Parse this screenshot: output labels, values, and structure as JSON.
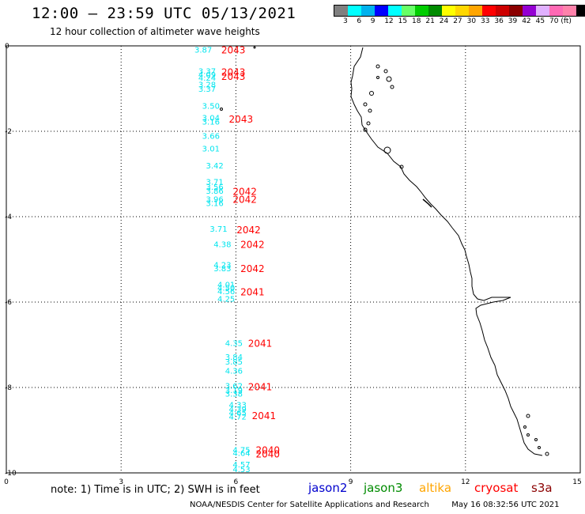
{
  "header": {
    "title": "12:00 – 23:59 UTC 05/13/2021",
    "subtitle": "12 hour collection of altimeter wave heights"
  },
  "legend": {
    "colors": [
      "#808080",
      "#00ffff",
      "#00b2ee",
      "#0000ff",
      "#00ffff",
      "#66ff66",
      "#00cd00",
      "#008b00",
      "#ffff00",
      "#ffd700",
      "#ffa500",
      "#ff0000",
      "#cd0000",
      "#8b0000",
      "#9400d3",
      "#e0b0ff",
      "#ff69b4",
      "#ff82ab",
      "#000000"
    ],
    "labels": [
      "3",
      "6",
      "9",
      "12",
      "15",
      "18",
      "21",
      "24",
      "27",
      "30",
      "33",
      "36",
      "39",
      "42",
      "45",
      "70 (ft)"
    ]
  },
  "axes": {
    "x_ticks": [
      "0",
      "3",
      "6",
      "9",
      "12",
      "15"
    ],
    "y_ticks": [
      "0",
      "-2",
      "-4",
      "-6",
      "-8",
      "-10"
    ]
  },
  "swh_labels": [
    {
      "t": "3.87",
      "x": 5.0,
      "y": -0.08
    },
    {
      "t": "3.37",
      "x": 5.1,
      "y": -0.58
    },
    {
      "t": "4.09",
      "x": 5.1,
      "y": -0.67
    },
    {
      "t": "4.24",
      "x": 5.1,
      "y": -0.74
    },
    {
      "t": "3.28",
      "x": 5.1,
      "y": -0.9
    },
    {
      "t": "3.37",
      "x": 5.1,
      "y": -1.0
    },
    {
      "t": "3.50",
      "x": 5.2,
      "y": -1.4
    },
    {
      "t": "3.04",
      "x": 5.2,
      "y": -1.68
    },
    {
      "t": "3.16",
      "x": 5.2,
      "y": -1.77
    },
    {
      "t": "3.66",
      "x": 5.2,
      "y": -2.1
    },
    {
      "t": "3.01",
      "x": 5.2,
      "y": -2.4
    },
    {
      "t": "3.42",
      "x": 5.3,
      "y": -2.8
    },
    {
      "t": "3.71",
      "x": 5.3,
      "y": -3.18
    },
    {
      "t": "3.56",
      "x": 5.3,
      "y": -3.3
    },
    {
      "t": "3.86",
      "x": 5.3,
      "y": -3.39
    },
    {
      "t": "3.96",
      "x": 5.3,
      "y": -3.58
    },
    {
      "t": "3.16",
      "x": 5.3,
      "y": -3.68
    },
    {
      "t": "3.71",
      "x": 5.4,
      "y": -4.28
    },
    {
      "t": "4.38",
      "x": 5.5,
      "y": -4.64
    },
    {
      "t": "4.23",
      "x": 5.5,
      "y": -5.12
    },
    {
      "t": "3.83",
      "x": 5.5,
      "y": -5.2
    },
    {
      "t": "4.01",
      "x": 5.6,
      "y": -5.58
    },
    {
      "t": "4.50",
      "x": 5.6,
      "y": -5.66
    },
    {
      "t": "4.56",
      "x": 5.6,
      "y": -5.74
    },
    {
      "t": "4.25",
      "x": 5.6,
      "y": -5.92
    },
    {
      "t": "4.35",
      "x": 5.8,
      "y": -6.95
    },
    {
      "t": "3.84",
      "x": 5.8,
      "y": -7.28
    },
    {
      "t": "3.85",
      "x": 5.8,
      "y": -7.39
    },
    {
      "t": "4.36",
      "x": 5.8,
      "y": -7.6
    },
    {
      "t": "3.62",
      "x": 5.8,
      "y": -7.95
    },
    {
      "t": "3.19",
      "x": 5.8,
      "y": -8.06
    },
    {
      "t": "3.38",
      "x": 5.8,
      "y": -8.14
    },
    {
      "t": "4.33",
      "x": 5.9,
      "y": -8.4
    },
    {
      "t": "4.39",
      "x": 5.9,
      "y": -8.5
    },
    {
      "t": "4.65",
      "x": 5.9,
      "y": -8.58
    },
    {
      "t": "4.72",
      "x": 5.9,
      "y": -8.68
    },
    {
      "t": "4.75",
      "x": 6.0,
      "y": -9.45
    },
    {
      "t": "4.64",
      "x": 6.0,
      "y": -9.53
    },
    {
      "t": "4.57",
      "x": 6.0,
      "y": -9.8
    },
    {
      "t": "4.53",
      "x": 6.0,
      "y": -9.91
    }
  ],
  "pass_labels": [
    {
      "t": "2043",
      "x": 5.7,
      "y": -0.08
    },
    {
      "t": "2043",
      "x": 5.7,
      "y": -0.6
    },
    {
      "t": "2043",
      "x": 5.7,
      "y": -0.7
    },
    {
      "t": "2043",
      "x": 5.9,
      "y": -1.7
    },
    {
      "t": "2042",
      "x": 6.0,
      "y": -3.4
    },
    {
      "t": "2042",
      "x": 6.0,
      "y": -3.58
    },
    {
      "t": "2042",
      "x": 6.1,
      "y": -4.3
    },
    {
      "t": "2042",
      "x": 6.2,
      "y": -4.64
    },
    {
      "t": "2042",
      "x": 6.2,
      "y": -5.2
    },
    {
      "t": "2041",
      "x": 6.2,
      "y": -5.75
    },
    {
      "t": "2041",
      "x": 6.4,
      "y": -6.95
    },
    {
      "t": "2041",
      "x": 6.4,
      "y": -7.97
    },
    {
      "t": "2041",
      "x": 6.5,
      "y": -8.65
    },
    {
      "t": "2040",
      "x": 6.6,
      "y": -9.45
    },
    {
      "t": "2040",
      "x": 6.6,
      "y": -9.55
    }
  ],
  "footer": {
    "note": "note:  1) Time is in UTC;  2) SWH is in feet",
    "satellites": [
      {
        "name": "jason2",
        "color": "#0000cd"
      },
      {
        "name": "jason3",
        "color": "#008b00"
      },
      {
        "name": "altika",
        "color": "#ffa500"
      },
      {
        "name": "cryosat",
        "color": "#ff0000"
      },
      {
        "name": "s3a",
        "color": "#8b0000"
      }
    ],
    "credit": "NOAA/NESDIS Center for Satellite Applications and Research",
    "timestamp": "May 16 08:32:56 UTC 2021"
  }
}
